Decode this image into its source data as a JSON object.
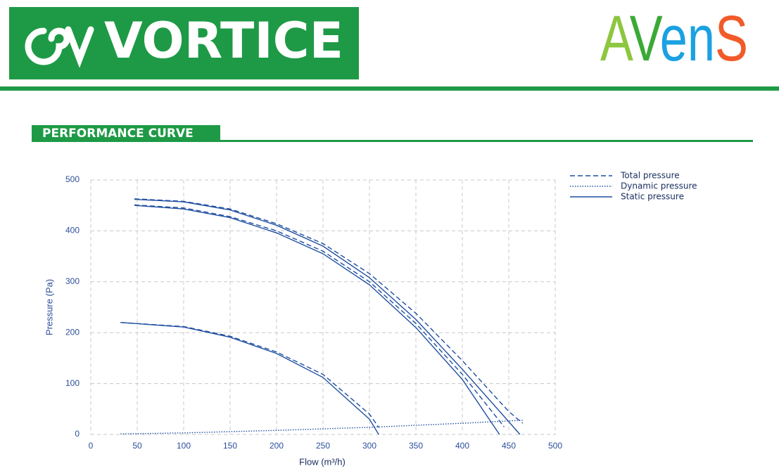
{
  "header": {
    "logo_text": "VORTICE",
    "brand_parts": [
      "A",
      "V",
      "en",
      "S"
    ],
    "brand_colors": [
      "#8dc63f",
      "#3aaa35",
      "#1ba1e2",
      "#f15a29"
    ]
  },
  "section_title": "PERFORMANCE CURVE",
  "chart_data": {
    "type": "line",
    "xlabel": "Flow (m³/h)",
    "ylabel": "Pressure (Pa)",
    "xlim": [
      0,
      500
    ],
    "ylim": [
      0,
      500
    ],
    "xticks": [
      0,
      50,
      100,
      150,
      200,
      250,
      300,
      350,
      400,
      450,
      500
    ],
    "yticks": [
      0,
      100,
      200,
      300,
      400,
      500
    ],
    "grid": true,
    "legend": "upper-right-outside",
    "series": [
      {
        "name": "Total pressure",
        "style": "dashed",
        "color": "#1f4fa0",
        "x": [
          47,
          100,
          150,
          200,
          250,
          300,
          350,
          400,
          450,
          465
        ],
        "values": [
          463,
          458,
          443,
          414,
          375,
          316,
          238,
          145,
          45,
          22
        ]
      },
      {
        "name": "Dynamic pressure",
        "style": "dotted",
        "color": "#1f4fa0",
        "x": [
          32,
          100,
          200,
          300,
          400,
          465
        ],
        "values": [
          1,
          3,
          8,
          14,
          22,
          28
        ]
      },
      {
        "name": "Static pressure",
        "style": "solid",
        "color": "#1f4fa0",
        "x": [
          47,
          100,
          150,
          200,
          250,
          300,
          350,
          400,
          450,
          462
        ],
        "values": [
          462,
          457,
          441,
          411,
          370,
          308,
          226,
          128,
          25,
          0
        ]
      },
      {
        "name": "Total pressure",
        "style": "dashed",
        "color": "#1f4fa0",
        "x": [
          47,
          100,
          150,
          200,
          250,
          300,
          350,
          400,
          445
        ],
        "values": [
          451,
          445,
          428,
          400,
          360,
          300,
          218,
          118,
          15
        ]
      },
      {
        "name": "Static pressure",
        "style": "solid",
        "color": "#1f4fa0",
        "x": [
          47,
          100,
          150,
          200,
          250,
          300,
          350,
          400,
          440
        ],
        "values": [
          450,
          443,
          426,
          396,
          355,
          294,
          210,
          108,
          0
        ]
      },
      {
        "name": "Total pressure",
        "style": "dashed",
        "color": "#1f4fa0",
        "x": [
          32,
          100,
          150,
          200,
          250,
          300,
          310
        ],
        "values": [
          220,
          212,
          193,
          162,
          118,
          40,
          14
        ]
      },
      {
        "name": "Static pressure",
        "style": "solid",
        "color": "#1f4fa0",
        "x": [
          32,
          100,
          150,
          200,
          250,
          300,
          310
        ],
        "values": [
          220,
          211,
          191,
          159,
          112,
          30,
          0
        ]
      }
    ]
  }
}
